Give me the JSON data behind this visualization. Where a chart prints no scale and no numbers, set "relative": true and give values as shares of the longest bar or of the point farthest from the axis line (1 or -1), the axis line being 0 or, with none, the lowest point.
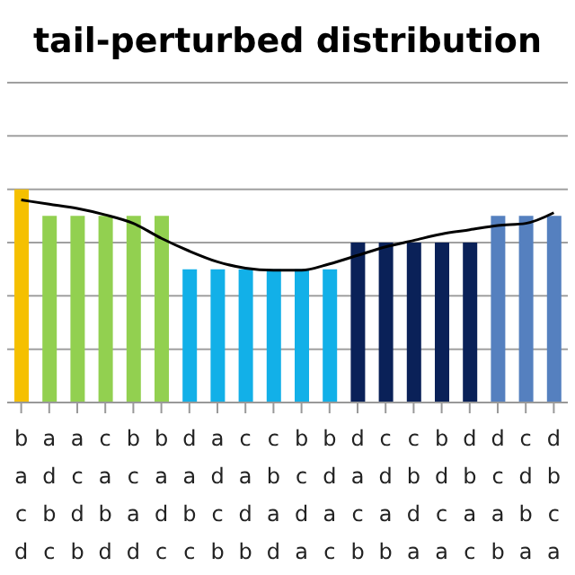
{
  "chart_data": {
    "type": "bar",
    "title": "tail-perturbed distribution",
    "relative": true,
    "grid": "y",
    "marker": "none",
    "categories": [
      "b\na\nc\nd",
      "a\nd\nb\nc",
      "a\nc\nd\nb",
      "c\na\nb\nd",
      "b\nc\na\nd",
      "b\na\nd\nc",
      "d\na\nb\nc",
      "a\nd\nc\nb",
      "c\na\nd\nb",
      "c\nb\na\nd",
      "b\nc\nd\na",
      "b\nd\na\nc",
      "d\na\nc\nb",
      "c\nd\na\nb",
      "c\nb\nd\na",
      "b\nd\nc\na",
      "d\nb\na\nc",
      "d\nc\na\nb",
      "c\nd\nb\na",
      "d\nb\nc\na"
    ],
    "series": [
      {
        "colors": [
          "#f5c000",
          "#92d050",
          "#92d050",
          "#92d050",
          "#92d050",
          "#92d050",
          "#12b0e8",
          "#12b0e8",
          "#12b0e8",
          "#12b0e8",
          "#12b0e8",
          "#12b0e8",
          "#0a2158",
          "#0a2158",
          "#0a2158",
          "#0a2158",
          "#0a2158",
          "#5580bf",
          "#5580bf",
          "#5580bf"
        ],
        "values": [
          1,
          0.875,
          0.875,
          0.875,
          0.875,
          0.875,
          0.625,
          0.625,
          0.625,
          0.625,
          0.625,
          0.625,
          0.75,
          0.75,
          0.75,
          0.75,
          0.75,
          0.875,
          0.875,
          0.875
        ]
      },
      {
        "type": "line",
        "color": "#000000",
        "values": [
          0.95,
          0.93,
          0.91,
          0.88,
          0.84,
          0.77,
          0.71,
          0.66,
          0.63,
          0.62,
          0.62,
          0.65,
          0.69,
          0.73,
          0.76,
          0.79,
          0.81,
          0.83,
          0.84,
          0.89
        ]
      }
    ]
  }
}
